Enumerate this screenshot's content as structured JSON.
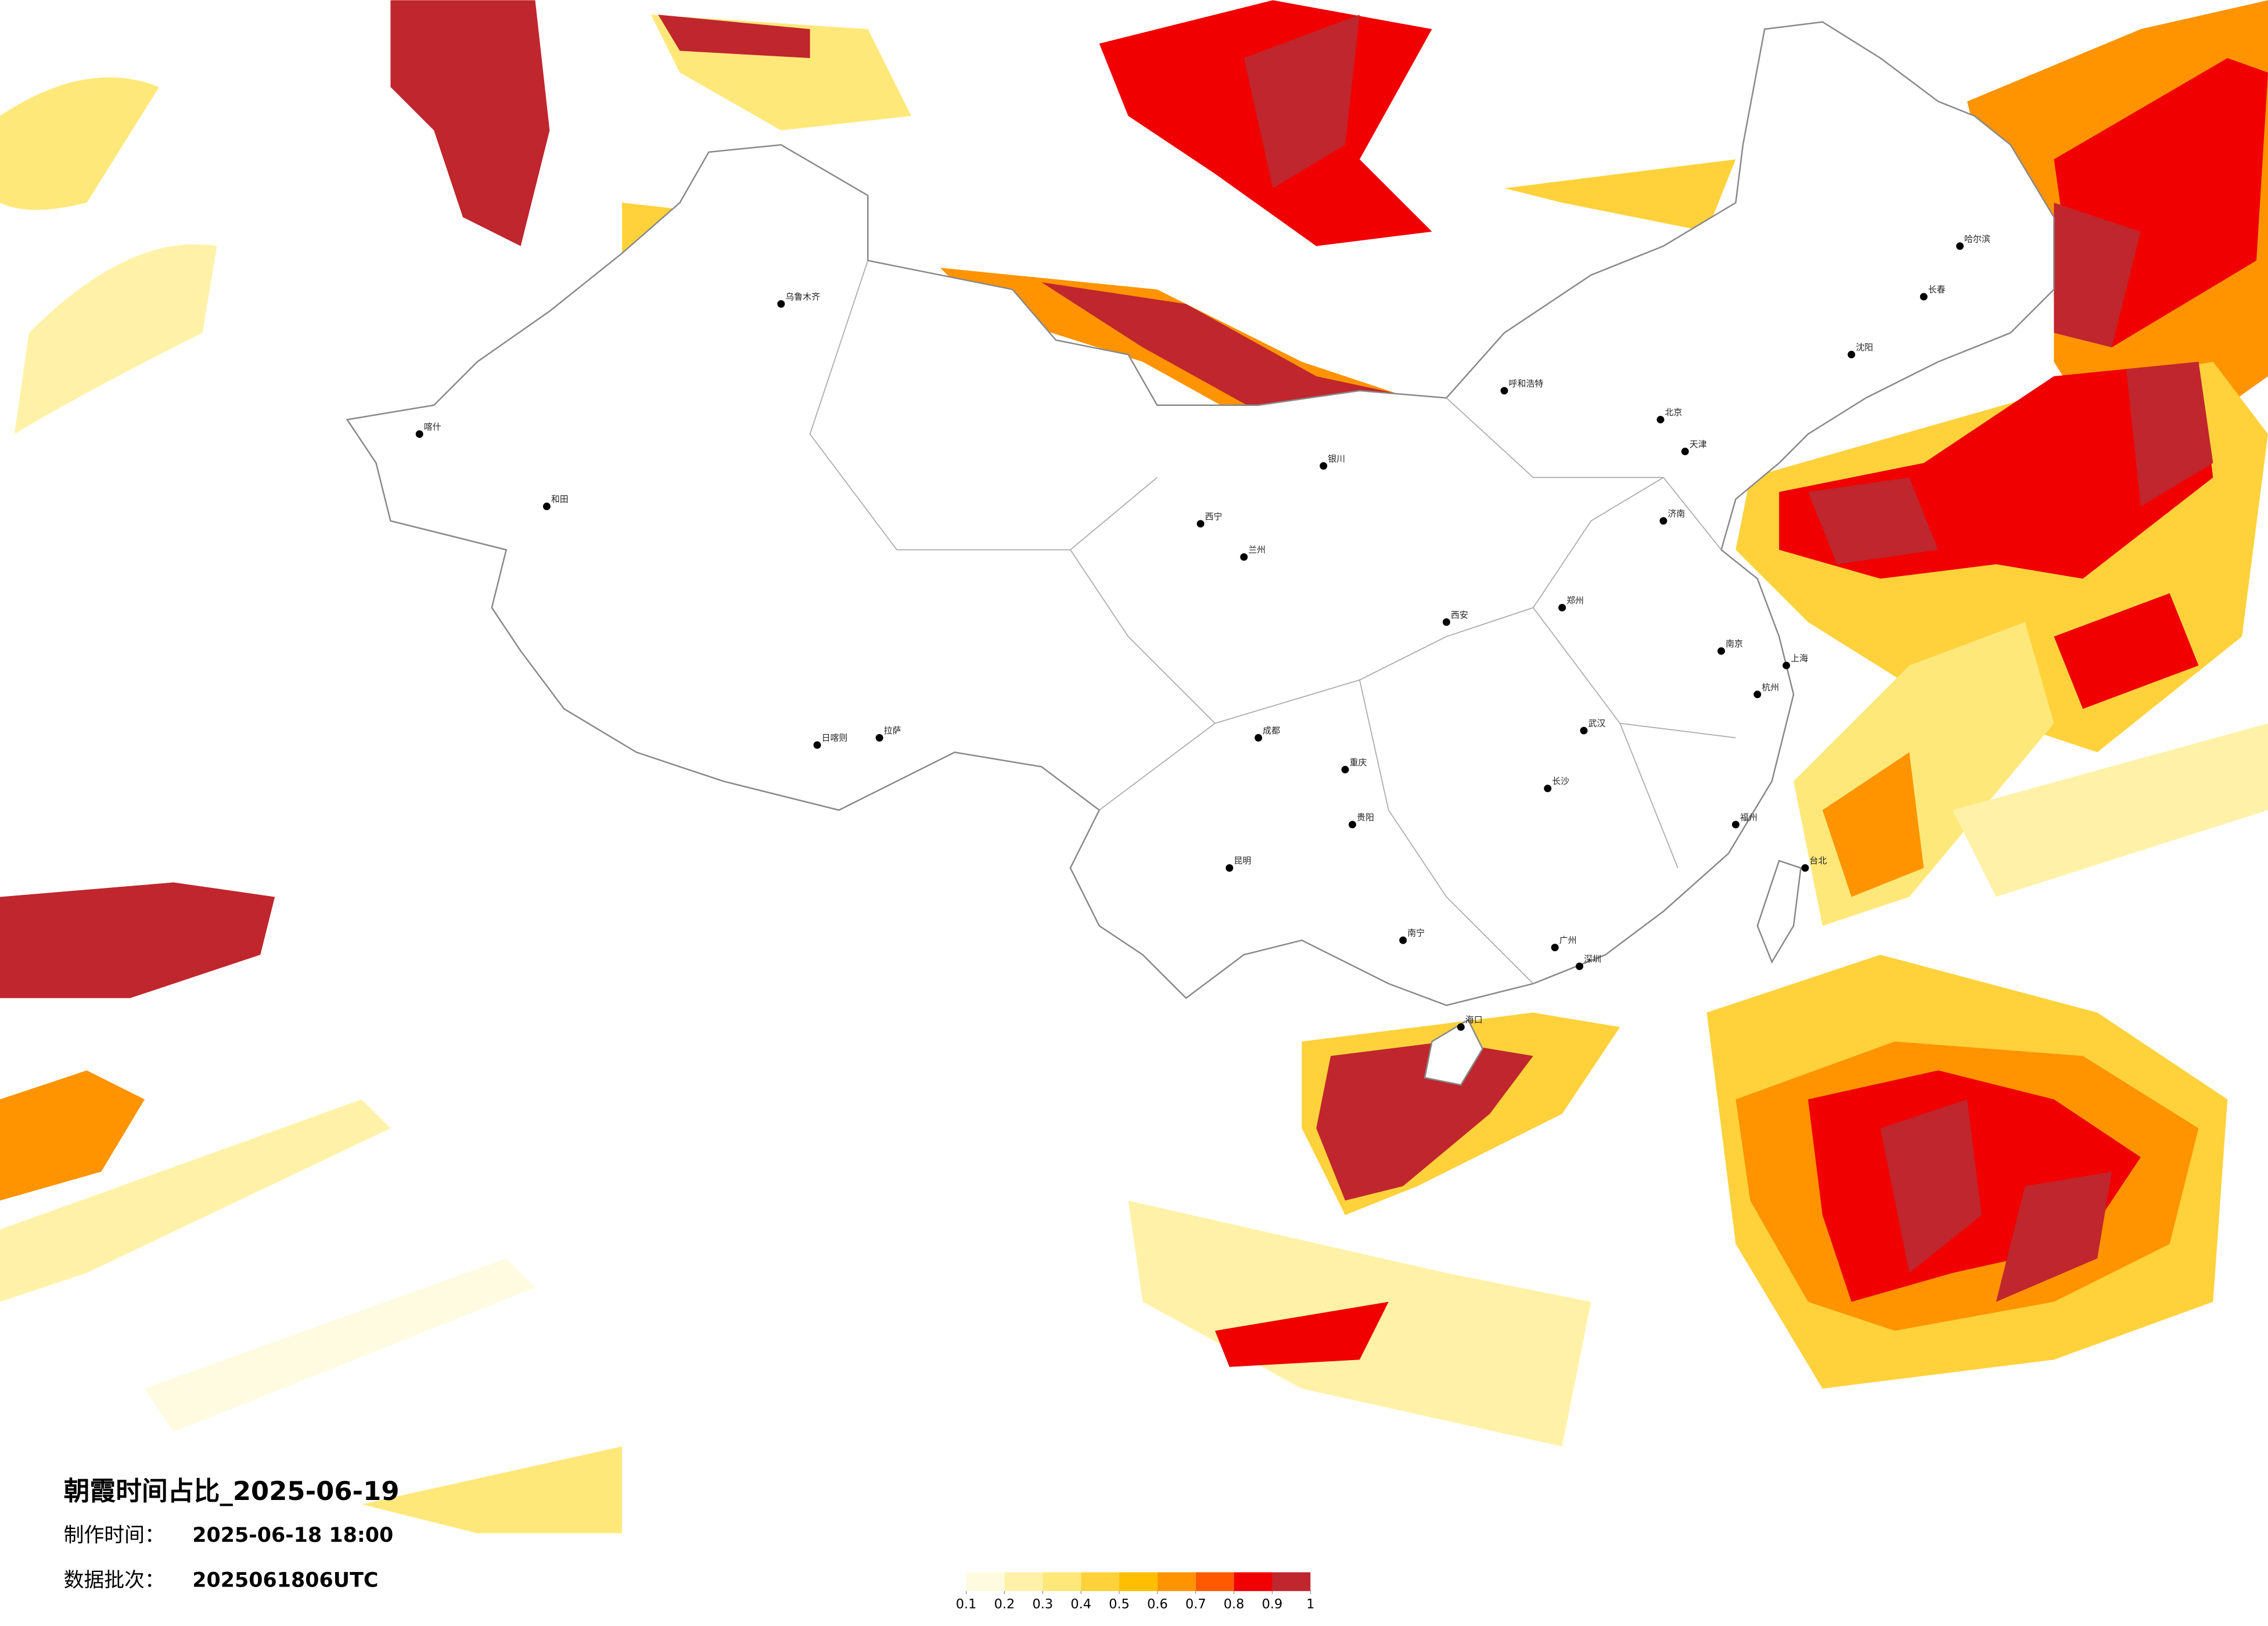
{
  "header": {
    "title": "朝霞时间占比_2025-06-19",
    "made_label": "制作时间：",
    "made_time": "2025-06-18 18:00",
    "batch_label": "数据批次：",
    "batch": "2025061806UTC"
  },
  "legend": {
    "ticks": [
      0.1,
      0.2,
      0.3,
      0.4,
      0.5,
      0.6,
      0.7,
      0.8,
      0.9,
      1
    ],
    "colors": [
      "#fffbe0",
      "#fff2a8",
      "#ffe87a",
      "#ffd23c",
      "#ffbf00",
      "#ff9400",
      "#ff5a00",
      "#f00000",
      "#c0262d"
    ]
  },
  "cities": [
    "北京",
    "天津",
    "上海",
    "广州",
    "深圳",
    "武汉",
    "成都",
    "重庆",
    "西安",
    "乌鲁木齐",
    "拉萨",
    "哈尔滨",
    "长春",
    "沈阳",
    "昆明",
    "贵阳",
    "南宁",
    "海口",
    "兰州",
    "西宁",
    "银川",
    "呼和浩特",
    "郑州",
    "长沙",
    "福州",
    "台北",
    "济南",
    "南京",
    "杭州",
    "喀什",
    "和田",
    "日喀则"
  ]
}
